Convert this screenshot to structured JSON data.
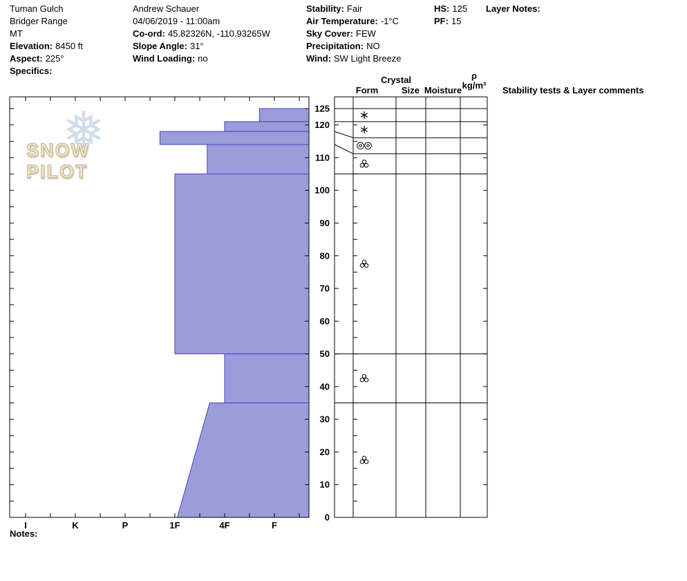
{
  "header": {
    "site": "Tuman Gulch",
    "range": "Bridger Range",
    "state": "MT",
    "elevation_label": "Elevation:",
    "elevation": "8450 ft",
    "aspect_label": "Aspect:",
    "aspect": "225°",
    "specifics_label": "Specifics:",
    "observer": "Andrew Schauer",
    "datetime": "04/06/2019 - 11:00am",
    "coord_label": "Co-ord:",
    "coord": "45.82326N, -110.93265W",
    "slope_angle_label": "Slope Angle:",
    "slope_angle": "31°",
    "wind_loading_label": "Wind Loading:",
    "wind_loading": "no",
    "stability_label": "Stability:",
    "stability": "Fair",
    "air_temp_label": "Air Temperature:",
    "air_temp": "-1°C",
    "sky_label": "Sky Cover:",
    "sky": "FEW",
    "precip_label": "Precipitation:",
    "precip": "NO",
    "wind_label": "Wind:",
    "wind": "SW Light Breeze",
    "hs_label": "HS:",
    "hs": "125",
    "pf_label": "PF:",
    "pf": "15",
    "layer_notes_label": "Layer Notes:"
  },
  "table_headers": {
    "crystal": "Crystal",
    "form": "Form",
    "size": "Size",
    "moisture": "Moisture",
    "rho": "ρ",
    "rho_units": "kg/m³",
    "comments": "Stability tests & Layer comments"
  },
  "watermark": {
    "brand": "SNOW PILOT",
    "snowflake": "❅"
  },
  "notes_label": "Notes:",
  "chart_data": {
    "type": "bar",
    "title": "Snow pit hardness profile",
    "orientation": "horizontal depth profile, harder to the left",
    "total_height_cm": 125,
    "depth_cm": {
      "surface": 125,
      "base": 0,
      "units": "cm",
      "tick_labels": [
        125,
        120,
        110,
        100,
        90,
        80,
        70,
        60,
        50,
        40,
        30,
        20,
        10,
        0
      ]
    },
    "hardness_categories": [
      "I",
      "K",
      "P",
      "1F",
      "4F",
      "F"
    ],
    "hardness_values": {
      "F": 1,
      "4F": 2,
      "1F": 3,
      "P": 4,
      "K": 5,
      "I": 6
    },
    "layers": [
      {
        "top_cm": 125,
        "bottom_cm": 121,
        "hand_hardness": "F+",
        "h_top": 1.3,
        "h_bottom": 1.3
      },
      {
        "top_cm": 121,
        "bottom_cm": 118,
        "hand_hardness": "4F",
        "h_top": 2.0,
        "h_bottom": 2.0
      },
      {
        "top_cm": 118,
        "bottom_cm": 114,
        "hand_hardness": "1F-P",
        "h_top": 3.3,
        "h_bottom": 3.3
      },
      {
        "top_cm": 114,
        "bottom_cm": 105,
        "hand_hardness": "4F+",
        "h_top": 2.35,
        "h_bottom": 2.35
      },
      {
        "top_cm": 105,
        "bottom_cm": 50,
        "hand_hardness": "1F",
        "h_top": 3.0,
        "h_bottom": 3.0
      },
      {
        "top_cm": 50,
        "bottom_cm": 35,
        "hand_hardness": "4F",
        "h_top": 2.0,
        "h_bottom": 2.0
      },
      {
        "top_cm": 35,
        "bottom_cm": 0,
        "hand_hardness": "4F+ to 1F",
        "h_top": 2.3,
        "h_bottom": 2.95
      }
    ],
    "table_rows": [
      {
        "chart_cm": 125,
        "table_cm": 125
      },
      {
        "chart_cm": 121,
        "table_cm": 121
      },
      {
        "chart_cm": 118,
        "table_cm": 116.1
      },
      {
        "chart_cm": 114,
        "table_cm": 111.2
      },
      {
        "chart_cm": 105,
        "table_cm": 105
      },
      {
        "chart_cm": 50,
        "table_cm": 50
      },
      {
        "chart_cm": 35,
        "table_cm": 35
      },
      {
        "chart_cm": 0,
        "table_cm": 0
      }
    ],
    "grain_symbols": [
      {
        "row": 0,
        "glyph": "stellar"
      },
      {
        "row": 1,
        "glyph": "stellar"
      },
      {
        "row": 2,
        "glyph": "rimed-pair"
      },
      {
        "row": 3,
        "glyph": "cluster"
      },
      {
        "row": 4,
        "glyph": "cluster"
      },
      {
        "row": 5,
        "glyph": "cluster"
      },
      {
        "row": 6,
        "glyph": "cluster"
      }
    ],
    "colors": {
      "layer_fill": "#9c9cdb",
      "layer_stroke": "#4343bd",
      "frame": "#000000"
    },
    "legend_position": "none",
    "grid": false
  }
}
